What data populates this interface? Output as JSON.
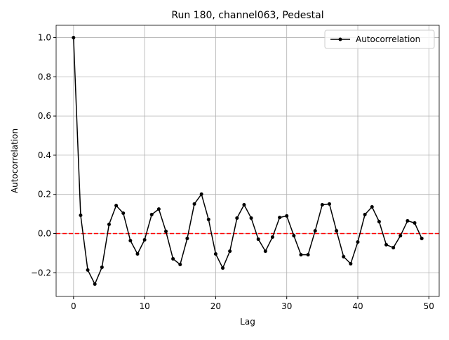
{
  "chart_data": {
    "type": "line",
    "title": "Run 180, channel063, Pedestal",
    "x_label": "Lag",
    "y_label": "Autocorrelation",
    "x": [
      0,
      1,
      2,
      3,
      4,
      5,
      6,
      7,
      8,
      9,
      10,
      11,
      12,
      13,
      14,
      15,
      16,
      17,
      18,
      19,
      20,
      21,
      22,
      23,
      24,
      25,
      26,
      27,
      28,
      29,
      30,
      31,
      32,
      33,
      34,
      35,
      36,
      37,
      38,
      39,
      40,
      41,
      42,
      43,
      44,
      45,
      46,
      47,
      48,
      49
    ],
    "series": [
      {
        "name": "Autocorrelation",
        "color": "#000000",
        "values": [
          1.0,
          0.093,
          -0.186,
          -0.258,
          -0.172,
          0.047,
          0.143,
          0.104,
          -0.036,
          -0.104,
          -0.032,
          0.097,
          0.125,
          0.011,
          -0.129,
          -0.158,
          -0.025,
          0.151,
          0.201,
          0.072,
          -0.104,
          -0.176,
          -0.09,
          0.079,
          0.147,
          0.079,
          -0.029,
          -0.09,
          -0.018,
          0.082,
          0.09,
          -0.011,
          -0.108,
          -0.108,
          0.014,
          0.147,
          0.151,
          0.014,
          -0.118,
          -0.154,
          -0.043,
          0.097,
          0.136,
          0.061,
          -0.057,
          -0.072,
          -0.011,
          0.065,
          0.054,
          -0.025
        ]
      }
    ],
    "xlim": [
      -2.45,
      51.45
    ],
    "xticks": [
      0,
      10,
      20,
      30,
      40,
      50
    ],
    "ylim": [
      -0.321,
      1.063
    ],
    "yticks": [
      {
        "value": -0.2,
        "label": "−0.2"
      },
      {
        "value": 0,
        "label": "0.0"
      },
      0.2,
      0.4,
      0.6,
      0.8,
      {
        "value": 1,
        "label": "1.0"
      }
    ],
    "hline": {
      "value": 0,
      "color": "#ff0000"
    },
    "grid": true,
    "legend": "upper right"
  }
}
